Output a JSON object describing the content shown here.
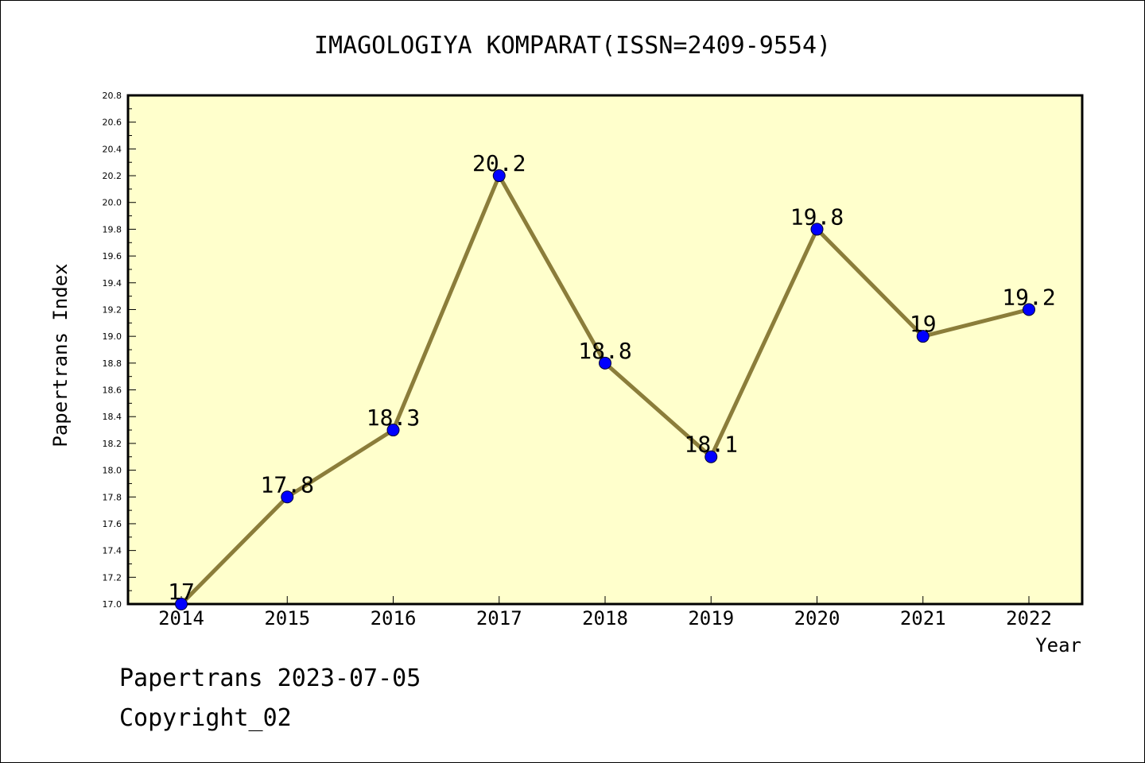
{
  "footer": {
    "line1": "Papertrans 2023-07-05",
    "line2": "Copyright_02"
  },
  "chart_data": {
    "type": "line",
    "title": "IMAGOLOGIYA KOMPARAT(ISSN=2409-9554)",
    "xlabel": "Year",
    "ylabel": "Papertrans Index",
    "categories": [
      "2014",
      "2015",
      "2016",
      "2017",
      "2018",
      "2019",
      "2020",
      "2021",
      "2022"
    ],
    "values": [
      17,
      17.8,
      18.3,
      20.2,
      18.8,
      18.1,
      19.8,
      19,
      19.2
    ],
    "data_labels": [
      "17",
      "17.8",
      "18.3",
      "20.2",
      "18.8",
      "18.1",
      "19.8",
      "19",
      "19.2"
    ],
    "ylim": [
      17.0,
      20.8
    ],
    "yticks": [
      "17.0",
      "17.2",
      "17.4",
      "17.6",
      "17.8",
      "18.0",
      "18.2",
      "18.4",
      "18.6",
      "18.8",
      "19.0",
      "19.2",
      "19.4",
      "19.6",
      "19.8",
      "20.0",
      "20.2",
      "20.4",
      "20.6",
      "20.8"
    ],
    "grid": false,
    "colors": {
      "plot_background": "#ffffcc",
      "line": "#8b7d3a",
      "marker": "#0000ff"
    }
  }
}
